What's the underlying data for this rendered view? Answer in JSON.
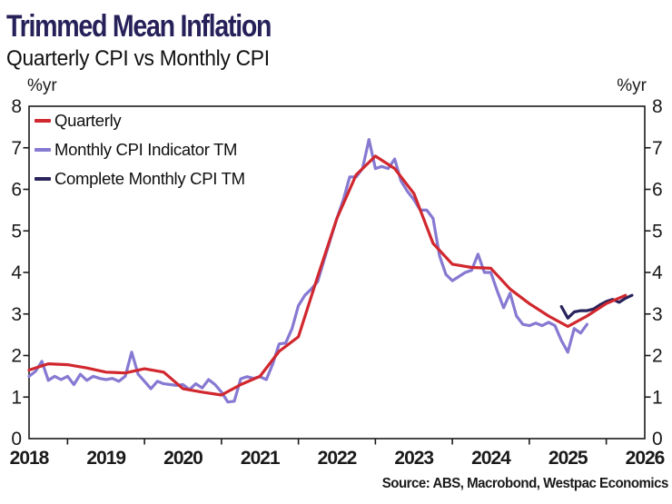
{
  "header": {
    "title": "Trimmed Mean Inflation",
    "subtitle": "Quarterly CPI vs Monthly CPI"
  },
  "axes": {
    "unit_left": "%yr",
    "unit_right": "%yr",
    "y_ticks": [
      0,
      1,
      2,
      3,
      4,
      5,
      6,
      7,
      8
    ],
    "x_ticks": [
      2018,
      2019,
      2020,
      2021,
      2022,
      2023,
      2024,
      2025,
      2026
    ]
  },
  "legend": [
    {
      "label": "Quarterly",
      "color": "#d1272e"
    },
    {
      "label": "Monthly CPI Indicator TM",
      "color": "#8679d2"
    },
    {
      "label": "Complete Monthly CPI TM",
      "color": "#29235c"
    }
  ],
  "source": "Source: ABS, Macrobond, Westpac Economics",
  "colors": {
    "title": "#27215a",
    "axis": "#1a1a1a",
    "background": "#ffffff"
  },
  "chart_data": {
    "type": "line",
    "title": "Trimmed Mean Inflation",
    "subtitle": "Quarterly CPI vs Monthly CPI",
    "ylabel": "%yr",
    "x_range": [
      2018,
      2026
    ],
    "y_range": [
      0,
      8
    ],
    "grid": false,
    "legend_position": "top-left",
    "series": [
      {
        "name": "Monthly CPI Indicator TM",
        "color": "#8679d2",
        "start": 2018.0,
        "points_per_year": 12,
        "values": [
          1.5,
          1.62,
          1.86,
          1.4,
          1.5,
          1.42,
          1.5,
          1.3,
          1.55,
          1.4,
          1.5,
          1.45,
          1.42,
          1.45,
          1.38,
          1.5,
          2.08,
          1.55,
          1.38,
          1.2,
          1.38,
          1.32,
          1.3,
          1.28,
          1.3,
          1.18,
          1.32,
          1.22,
          1.42,
          1.3,
          1.12,
          0.88,
          0.9,
          1.44,
          1.49,
          1.45,
          1.49,
          1.42,
          1.8,
          2.28,
          2.3,
          2.65,
          3.2,
          3.45,
          3.6,
          3.78,
          4.3,
          4.8,
          5.3,
          5.75,
          6.3,
          6.3,
          6.5,
          7.2,
          6.5,
          6.55,
          6.5,
          6.73,
          6.2,
          5.95,
          5.75,
          5.5,
          5.5,
          5.3,
          4.4,
          3.95,
          3.8,
          3.9,
          4.0,
          4.05,
          4.44,
          4.0,
          4.0,
          3.55,
          3.15,
          3.5,
          2.95,
          2.75,
          2.72,
          2.78,
          2.72,
          2.8,
          2.72,
          2.36,
          2.08,
          2.65,
          2.54,
          2.75
        ]
      },
      {
        "name": "Complete Monthly CPI TM",
        "color": "#29235c",
        "start": 2024.9167,
        "points_per_year": 12,
        "values": [
          3.18,
          2.9,
          3.05,
          3.08,
          3.08,
          3.12,
          3.22,
          3.3,
          3.35,
          3.28,
          3.38,
          3.45
        ]
      },
      {
        "name": "Quarterly",
        "color": "#d1272e",
        "start": 2018.0,
        "points_per_year": 4,
        "values": [
          1.65,
          1.8,
          1.78,
          1.7,
          1.6,
          1.58,
          1.68,
          1.6,
          1.2,
          1.12,
          1.05,
          1.3,
          1.5,
          2.1,
          2.45,
          3.9,
          5.3,
          6.35,
          6.8,
          6.5,
          5.9,
          4.7,
          4.2,
          4.12,
          4.1,
          3.6,
          3.25,
          2.95,
          2.7,
          2.95,
          3.25,
          3.45
        ]
      }
    ]
  }
}
